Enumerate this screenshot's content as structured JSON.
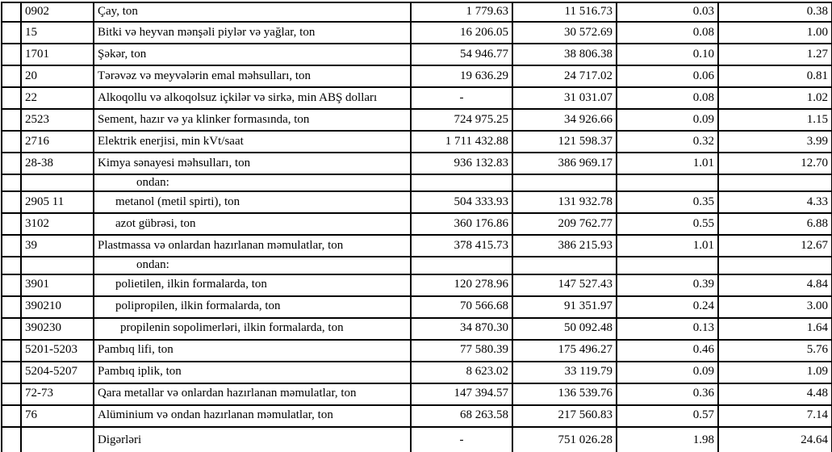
{
  "document": {
    "background_color": "#ffffff",
    "text_color": "#000000",
    "border_color": "#000000"
  },
  "table": {
    "column_keys": [
      "row-marker",
      "code",
      "name",
      "value1",
      "value2",
      "value3",
      "value4"
    ],
    "rows": [
      {
        "code": "0902",
        "name": "Çay, ton",
        "indent": 0,
        "short": false,
        "values": [
          "1 779.63",
          "11 516.73",
          "0.03",
          "0.38"
        ]
      },
      {
        "code": "15",
        "name": "Bitki və heyvan mənşəli piylər və yağlar, ton",
        "indent": 0,
        "short": false,
        "values": [
          "16 206.05",
          "30 572.69",
          "0.08",
          "1.00"
        ]
      },
      {
        "code": "1701",
        "name": "Şəkər, ton",
        "indent": 0,
        "short": false,
        "values": [
          "54 946.77",
          "38 806.38",
          "0.10",
          "1.27"
        ]
      },
      {
        "code": "20",
        "name": "Tərəvəz və meyvələrin emal məhsulları, ton",
        "indent": 0,
        "short": false,
        "values": [
          "19 636.29",
          "24 717.02",
          "0.06",
          "0.81"
        ]
      },
      {
        "code": "22",
        "name": "Alkoqollu və alkoqolsuz içkilər və sirkə, min ABŞ dolları",
        "indent": 0,
        "short": false,
        "values": [
          "-",
          "31 031.07",
          "0.08",
          "1.02"
        ]
      },
      {
        "code": "2523",
        "name": "Sement, hazır və ya klinker formasında, ton",
        "indent": 0,
        "short": false,
        "values": [
          "724 975.25",
          "34 926.66",
          "0.09",
          "1.15"
        ]
      },
      {
        "code": "2716",
        "name": "Elektrik enerjisi, min kVt/saat",
        "indent": 0,
        "short": false,
        "values": [
          "1 711 432.88",
          "121 598.37",
          "0.32",
          "3.99"
        ]
      },
      {
        "code": "28-38",
        "name": "Kimya sənayesi məhsulları, ton",
        "indent": 0,
        "short": false,
        "values": [
          "936 132.83",
          "386 969.17",
          "1.01",
          "12.70"
        ]
      },
      {
        "code": "",
        "name": "ondan:",
        "indent": 48,
        "short": true,
        "values": [
          "",
          "",
          "",
          ""
        ]
      },
      {
        "code": "2905 11",
        "name": "metanol (metil spirti), ton",
        "indent": 22,
        "short": false,
        "values": [
          "504 333.93",
          "131 932.78",
          "0.35",
          "4.33"
        ]
      },
      {
        "code": "3102",
        "name": "azot gübrəsi, ton",
        "indent": 22,
        "short": false,
        "values": [
          "360 176.86",
          "209 762.77",
          "0.55",
          "6.88"
        ]
      },
      {
        "code": "39",
        "name": "Plastmassa və onlardan hazırlanan məmulatlar, ton",
        "indent": 0,
        "short": false,
        "values": [
          "378 415.73",
          "386 215.93",
          "1.01",
          "12.67"
        ]
      },
      {
        "code": "",
        "name": "ondan:",
        "indent": 48,
        "short": true,
        "values": [
          "",
          "",
          "",
          ""
        ]
      },
      {
        "code": "3901",
        "name": "polietilen, ilkin formalarda, ton",
        "indent": 22,
        "short": false,
        "values": [
          "120 278.96",
          "147 527.43",
          "0.39",
          "4.84"
        ]
      },
      {
        "code": "390210",
        "name": "polipropilen, ilkin formalarda, ton",
        "indent": 22,
        "short": false,
        "values": [
          "70 566.68",
          "91 351.97",
          "0.24",
          "3.00"
        ]
      },
      {
        "code": "390230",
        "name": "propilenin sopolimerləri, ilkin formalarda, ton",
        "indent": 28,
        "short": false,
        "values": [
          "34 870.30",
          "50 092.48",
          "0.13",
          "1.64"
        ]
      },
      {
        "code": "5201-5203",
        "name": "Pambıq lifi, ton",
        "indent": 0,
        "short": false,
        "values": [
          "77 580.39",
          "175 496.27",
          "0.46",
          "5.76"
        ]
      },
      {
        "code": "5204-5207",
        "name": "Pambıq iplik, ton",
        "indent": 0,
        "short": false,
        "values": [
          "8 623.02",
          "33 119.79",
          "0.09",
          "1.09"
        ]
      },
      {
        "code": "72-73",
        "name": "Qara metallar və onlardan hazırlanan məmulatlar, ton",
        "indent": 0,
        "short": false,
        "values": [
          "147 394.57",
          "136 539.76",
          "0.36",
          "4.48"
        ]
      },
      {
        "code": "76",
        "name": "Alüminium və ondan hazırlanan məmulatlar, ton",
        "indent": 0,
        "short": false,
        "values": [
          "68 263.58",
          "217 560.83",
          "0.57",
          "7.14"
        ]
      },
      {
        "code": "",
        "name": "Digərləri",
        "indent": 0,
        "short": false,
        "values": [
          "-",
          "751 026.28",
          "1.98",
          "24.64"
        ]
      }
    ]
  }
}
